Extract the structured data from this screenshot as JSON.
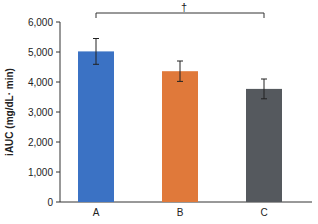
{
  "chart_data": {
    "type": "bar",
    "y_label": "iAUC (mg/dL· min)",
    "categories": [
      "A",
      "B",
      "C"
    ],
    "values": [
      5020,
      4360,
      3770
    ],
    "errors": [
      430,
      340,
      330
    ],
    "colors": [
      "#3b72c4",
      "#e0793a",
      "#55595e"
    ],
    "ylim": [
      0,
      6000
    ],
    "yticks": [
      0,
      {
        "value": 1000,
        "label": "1,000"
      },
      {
        "value": 2000,
        "label": "2,000"
      },
      {
        "value": 3000,
        "label": "3,000"
      },
      {
        "value": 4000,
        "label": "4,000"
      },
      {
        "value": 5000,
        "label": "5,000"
      },
      {
        "value": 6000,
        "label": "6,000"
      }
    ],
    "grid": false,
    "annotation": "†"
  }
}
